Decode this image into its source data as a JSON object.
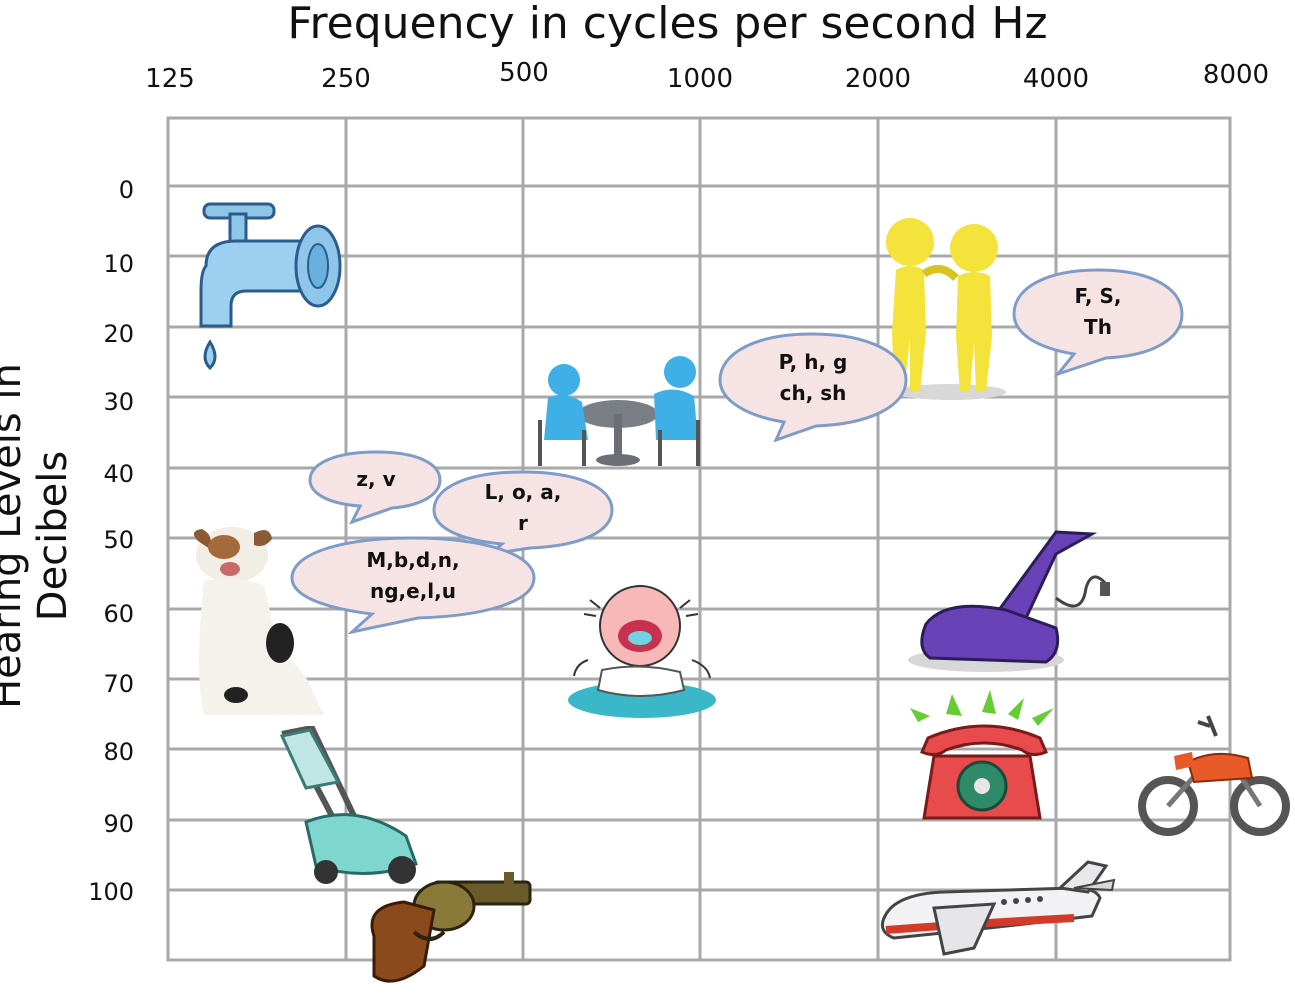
{
  "title": "Frequency in cycles per second Hz",
  "y_label": "Hearing Levels in Decibels",
  "x_ticks": [
    "125",
    "250",
    "500",
    "1000",
    "2000",
    "4000",
    "8000"
  ],
  "y_ticks": [
    "0",
    "10",
    "20",
    "30",
    "40",
    "50",
    "60",
    "70",
    "80",
    "90",
    "100"
  ],
  "bubbles": {
    "zv": "z, v",
    "loar": "L, o, a,\nr",
    "mbdn": "M,b,d,n,\nng,e,l,u",
    "phg": "P, h, g\nch, sh",
    "fsth": "F, S,\nTh"
  },
  "colors": {
    "bubble_fill": "#f6e4e4",
    "bubble_stroke": "#7f9cc9",
    "grid": "#a9a9a9"
  }
}
